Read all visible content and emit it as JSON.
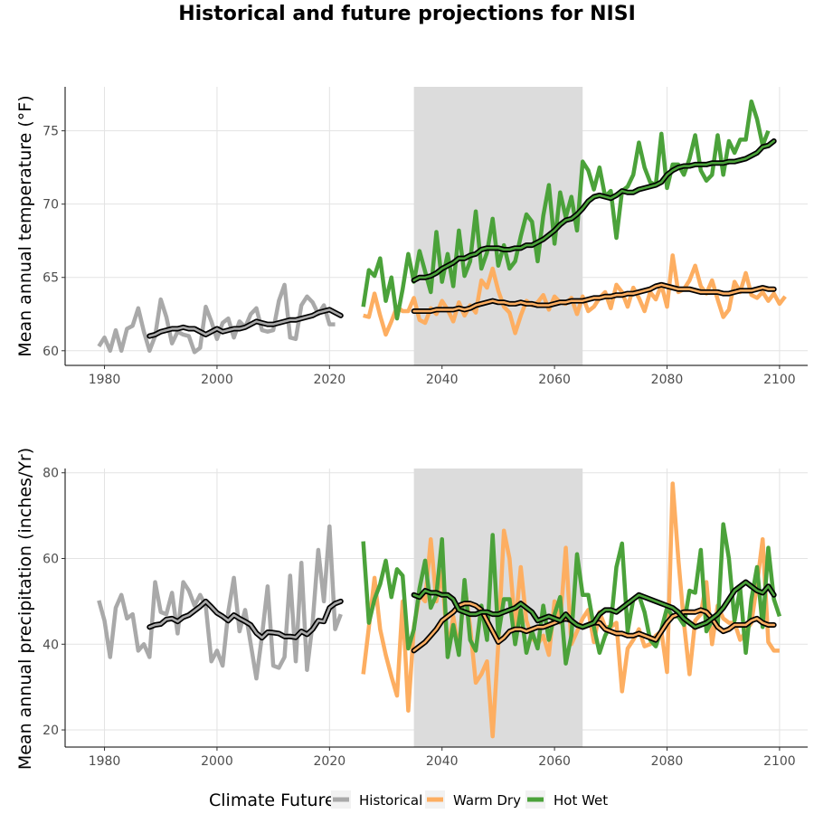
{
  "title": "Historical and future projections for NISI",
  "legend": {
    "title": "Climate Future",
    "items": [
      {
        "label": "Historical",
        "color": "#a9a9a9"
      },
      {
        "label": "Warm Dry",
        "color": "#fdae61"
      },
      {
        "label": "Hot Wet",
        "color": "#4ba23a"
      }
    ]
  },
  "colors": {
    "smooth_outline": "#000000",
    "shade": "#dcdcdc"
  },
  "chart_data": [
    {
      "type": "line",
      "ylabel": "Mean annual temperature (°F)",
      "xlim": [
        1973,
        2105
      ],
      "ylim": [
        59,
        78
      ],
      "xticks": [
        1980,
        2000,
        2020,
        2040,
        2060,
        2080,
        2100
      ],
      "yticks": [
        60,
        65,
        70,
        75
      ],
      "shaded_period": [
        2035,
        2065
      ],
      "series": [
        {
          "name": "Historical",
          "x_start": 1979,
          "values": [
            60.3,
            60.9,
            60.0,
            61.4,
            60.0,
            61.5,
            61.7,
            62.9,
            61.3,
            60.0,
            61.0,
            63.5,
            62.3,
            60.5,
            61.3,
            61.1,
            61.0,
            59.9,
            60.2,
            63.0,
            62.0,
            60.8,
            61.9,
            62.2,
            60.9,
            62.0,
            61.6,
            62.5,
            62.9,
            61.4,
            61.3,
            61.4,
            63.4,
            64.5,
            60.9,
            60.8,
            63.1,
            63.7,
            63.3,
            62.5,
            63.1,
            61.8,
            61.8
          ]
        },
        {
          "name": "Historical",
          "smooth": true,
          "x_start": 1988,
          "values": [
            61.0,
            61.1,
            61.3,
            61.4,
            61.5,
            61.5,
            61.6,
            61.5,
            61.5,
            61.3,
            61.1,
            61.3,
            61.5,
            61.3,
            61.4,
            61.5,
            61.5,
            61.6,
            61.8,
            62.0,
            61.9,
            61.8,
            61.8,
            61.9,
            62.0,
            62.1,
            62.1,
            62.2,
            62.3,
            62.4,
            62.6,
            62.7,
            62.8,
            62.6,
            62.4
          ]
        },
        {
          "name": "Warm Dry",
          "x_start": 2026,
          "values": [
            62.4,
            62.3,
            63.9,
            62.4,
            61.1,
            62.0,
            63.0,
            62.7,
            62.7,
            63.6,
            62.1,
            61.9,
            62.9,
            62.5,
            63.4,
            62.8,
            62.0,
            63.3,
            62.4,
            63.1,
            62.6,
            64.8,
            64.3,
            65.6,
            64.1,
            63.0,
            62.6,
            61.2,
            62.4,
            63.4,
            63.1,
            63.3,
            63.8,
            62.8,
            63.7,
            63.3,
            63.2,
            63.6,
            62.5,
            63.7,
            62.7,
            63.0,
            63.6,
            64.0,
            62.9,
            64.5,
            64.0,
            63.0,
            64.3,
            63.6,
            62.7,
            64.0,
            63.5,
            64.5,
            63.0,
            66.5,
            64.0,
            64.2,
            64.8,
            65.8,
            64.4,
            63.9,
            64.8,
            63.5,
            62.3,
            62.8,
            64.7,
            64.0,
            65.3,
            63.8,
            63.6,
            64.0,
            63.4,
            63.9,
            63.2,
            63.7
          ]
        },
        {
          "name": "Warm Dry",
          "smooth": true,
          "x_start": 2035,
          "values": [
            62.7,
            62.7,
            62.7,
            62.7,
            62.8,
            62.8,
            62.8,
            62.8,
            62.9,
            62.8,
            62.9,
            63.1,
            63.2,
            63.3,
            63.4,
            63.3,
            63.3,
            63.2,
            63.2,
            63.3,
            63.2,
            63.2,
            63.1,
            63.1,
            63.1,
            63.2,
            63.3,
            63.3,
            63.4,
            63.4,
            63.4,
            63.5,
            63.6,
            63.6,
            63.7,
            63.7,
            63.8,
            63.8,
            63.9,
            63.9,
            64.0,
            64.1,
            64.2,
            64.4,
            64.5,
            64.4,
            64.3,
            64.2,
            64.2,
            64.2,
            64.1,
            64.0,
            64.0,
            64.0,
            64.0,
            63.9,
            63.9,
            64.0,
            64.1,
            64.1,
            64.1,
            64.2,
            64.3,
            64.2,
            64.2
          ]
        },
        {
          "name": "Hot Wet",
          "x_start": 2026,
          "values": [
            63.0,
            65.5,
            65.1,
            66.3,
            63.4,
            65.0,
            62.2,
            64.2,
            66.6,
            64.7,
            66.8,
            65.4,
            64.0,
            68.1,
            64.7,
            66.6,
            64.4,
            68.2,
            65.1,
            66.1,
            69.5,
            65.6,
            66.7,
            69.0,
            65.8,
            67.2,
            65.6,
            66.1,
            67.8,
            69.3,
            68.8,
            66.1,
            69.2,
            71.3,
            67.3,
            70.8,
            69.1,
            70.5,
            68.2,
            72.9,
            72.3,
            71.0,
            72.5,
            70.5,
            70.9,
            67.7,
            70.9,
            71.2,
            72.0,
            74.2,
            72.5,
            71.5,
            71.3,
            74.8,
            71.1,
            72.7,
            72.7,
            72.0,
            73.1,
            74.7,
            72.3,
            71.6,
            72.0,
            74.7,
            72.0,
            74.3,
            73.5,
            74.4,
            74.4,
            77.0,
            75.8,
            74.0,
            75.0
          ]
        },
        {
          "name": "Hot Wet",
          "smooth": true,
          "x_start": 2035,
          "values": [
            64.8,
            65.0,
            65.0,
            65.1,
            65.3,
            65.6,
            65.8,
            66.0,
            66.3,
            66.3,
            66.5,
            66.6,
            66.9,
            67.0,
            67.0,
            67.0,
            66.9,
            66.9,
            67.0,
            67.0,
            67.2,
            67.2,
            67.4,
            67.6,
            67.9,
            68.2,
            68.6,
            68.9,
            69.0,
            69.3,
            69.7,
            70.2,
            70.5,
            70.6,
            70.5,
            70.4,
            70.6,
            70.9,
            70.8,
            70.8,
            71.0,
            71.1,
            71.2,
            71.3,
            71.5,
            72.0,
            72.3,
            72.5,
            72.6,
            72.6,
            72.7,
            72.7,
            72.7,
            72.8,
            72.8,
            72.8,
            72.9,
            72.9,
            73.0,
            73.1,
            73.3,
            73.5,
            73.9,
            74.0,
            74.3
          ]
        }
      ]
    },
    {
      "type": "line",
      "ylabel": "Mean annual precipitation (inches/Yr)",
      "xlim": [
        1973,
        2105
      ],
      "ylim": [
        16,
        81
      ],
      "xticks": [
        1980,
        2000,
        2020,
        2040,
        2060,
        2080,
        2100
      ],
      "yticks": [
        20,
        40,
        60,
        80
      ],
      "shaded_period": [
        2035,
        2065
      ],
      "series": [
        {
          "name": "Historical",
          "x_start": 1979,
          "values": [
            50.2,
            45.5,
            37.0,
            48.5,
            51.5,
            46.0,
            47.0,
            38.5,
            40.0,
            37.0,
            54.5,
            47.5,
            47.0,
            52.0,
            42.5,
            54.5,
            52.5,
            49.0,
            51.5,
            49.0,
            36.0,
            38.5,
            35.0,
            47.5,
            55.5,
            43.0,
            48.0,
            40.0,
            32.0,
            42.0,
            53.5,
            35.0,
            34.5,
            37.0,
            56.0,
            36.0,
            59.0,
            34.0,
            45.0,
            62.0,
            50.0,
            67.5,
            43.5,
            47.0
          ]
        },
        {
          "name": "Historical",
          "smooth": true,
          "x_start": 1988,
          "values": [
            44.0,
            44.5,
            44.7,
            45.8,
            46.0,
            45.3,
            46.3,
            46.8,
            47.8,
            48.8,
            50.0,
            48.7,
            47.3,
            46.5,
            45.5,
            46.8,
            46.0,
            45.3,
            44.5,
            42.6,
            41.5,
            42.8,
            42.7,
            42.5,
            41.8,
            41.8,
            41.6,
            43.0,
            42.3,
            43.5,
            45.5,
            45.3,
            48.5,
            49.5,
            50.0
          ]
        },
        {
          "name": "Warm Dry",
          "x_start": 2026,
          "values": [
            33.0,
            44.0,
            55.5,
            43.5,
            37.5,
            32.5,
            28.0,
            50.0,
            24.5,
            44.0,
            51.5,
            50.0,
            64.5,
            50.0,
            57.0,
            38.5,
            46.5,
            38.5,
            54.0,
            44.0,
            31.0,
            33.0,
            36.0,
            18.5,
            40.0,
            66.5,
            60.0,
            44.0,
            58.0,
            45.5,
            41.5,
            40.0,
            42.0,
            37.5,
            50.0,
            45.0,
            62.5,
            40.0,
            43.0,
            46.0,
            48.0,
            40.5,
            47.5,
            44.0,
            44.0,
            45.0,
            29.0,
            39.0,
            41.0,
            43.5,
            39.5,
            40.0,
            42.0,
            43.0,
            33.5,
            77.5,
            60.0,
            45.0,
            33.0,
            45.5,
            47.0,
            54.5,
            40.0,
            49.0,
            46.0,
            45.0,
            45.0,
            41.0,
            43.0,
            45.0,
            54.0,
            64.5,
            40.5,
            38.5,
            38.5
          ]
        },
        {
          "name": "Warm Dry",
          "smooth": true,
          "x_start": 2035,
          "values": [
            38.5,
            39.5,
            40.5,
            42.0,
            43.5,
            45.5,
            46.5,
            47.5,
            49.0,
            49.5,
            49.5,
            49.0,
            48.0,
            45.5,
            43.0,
            40.5,
            41.5,
            43.0,
            43.5,
            43.5,
            43.0,
            43.5,
            44.0,
            44.0,
            44.5,
            45.0,
            45.5,
            46.0,
            45.5,
            44.5,
            44.0,
            44.5,
            45.0,
            45.0,
            43.5,
            43.0,
            42.5,
            42.5,
            42.0,
            42.0,
            42.5,
            42.0,
            41.5,
            41.0,
            43.0,
            45.0,
            46.5,
            47.0,
            47.5,
            47.5,
            47.5,
            48.0,
            47.5,
            46.0,
            44.0,
            43.0,
            43.5,
            44.5,
            44.5,
            44.5,
            45.5,
            46.0,
            45.0,
            44.5,
            44.5
          ]
        },
        {
          "name": "Hot Wet",
          "x_start": 2026,
          "values": [
            64.0,
            45.0,
            50.5,
            54.0,
            59.5,
            51.0,
            57.5,
            56.0,
            39.0,
            43.5,
            53.0,
            59.5,
            48.5,
            51.5,
            64.5,
            37.0,
            44.5,
            37.5,
            55.0,
            41.0,
            38.5,
            49.0,
            41.0,
            65.5,
            42.0,
            50.5,
            50.5,
            40.0,
            48.0,
            38.0,
            43.0,
            39.0,
            49.0,
            41.0,
            47.0,
            51.0,
            35.5,
            42.0,
            61.0,
            51.5,
            51.5,
            44.0,
            38.0,
            42.0,
            44.5,
            58.0,
            63.5,
            43.0,
            50.5,
            51.5,
            47.5,
            41.0,
            39.5,
            43.5,
            48.5,
            46.5,
            46.5,
            44.5,
            52.5,
            52.0,
            62.0,
            43.0,
            45.5,
            44.0,
            68.0,
            60.0,
            45.5,
            53.0,
            38.0,
            50.5,
            58.0,
            44.0,
            62.5,
            50.5,
            46.5
          ]
        },
        {
          "name": "Hot Wet",
          "smooth": true,
          "x_start": 2035,
          "values": [
            51.5,
            51.0,
            52.5,
            52.0,
            52.0,
            51.5,
            51.5,
            50.5,
            48.0,
            47.5,
            47.0,
            47.0,
            47.5,
            47.5,
            47.0,
            47.0,
            47.5,
            48.0,
            48.5,
            49.5,
            48.5,
            47.5,
            45.5,
            46.0,
            46.5,
            46.0,
            45.5,
            47.0,
            45.5,
            44.5,
            44.0,
            44.5,
            45.0,
            47.0,
            48.0,
            48.0,
            47.5,
            48.5,
            49.5,
            50.5,
            51.5,
            51.0,
            50.5,
            50.0,
            49.5,
            49.0,
            48.5,
            47.5,
            46.0,
            45.0,
            44.0,
            44.5,
            45.0,
            46.0,
            47.0,
            48.5,
            50.5,
            52.5,
            53.5,
            54.5,
            53.5,
            52.5,
            52.0,
            53.5,
            51.5
          ]
        }
      ]
    }
  ]
}
